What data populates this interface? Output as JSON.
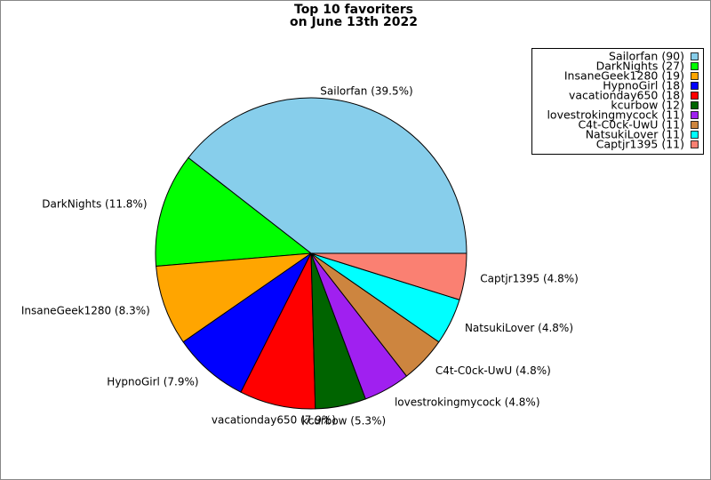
{
  "chart_data": {
    "type": "pie",
    "title": [
      "Top 10 favoriters",
      "on June 13th 2022"
    ],
    "categories": [
      "Sailorfan (39.5%)",
      "DarkNights (11.8%)",
      "InsaneGeek1280 (8.3%)",
      "HypnoGirl (7.9%)",
      "vacationday650 (7.9%)",
      "kcurbow (5.3%)",
      "lovestrokingmycock (4.8%)",
      "C4t-C0ck-UwU (4.8%)",
      "NatsukiLover (4.8%)",
      "Captjr1395 (4.8%)"
    ],
    "values": [
      90,
      27,
      19,
      18,
      18,
      12,
      11,
      11,
      11,
      11
    ],
    "value_labels": [
      "Sailorfan (90)",
      "DarkNights (27)",
      "InsaneGeek1280 (19)",
      "HypnoGirl (18)",
      "vacationday650 (18)",
      "kcurbow (12)",
      "lovestrokingmycock (11)",
      "C4t-C0ck-UwU (11)",
      "NatsukiLover (11)",
      "Captjr1395 (11)"
    ],
    "colors": [
      "#87ceeb",
      "#00ff00",
      "#ffa500",
      "#0000ff",
      "#ff0000",
      "#006400",
      "#a020f0",
      "#cd853f",
      "#00ffff",
      "#fa8072"
    ],
    "legend": "upper right"
  }
}
